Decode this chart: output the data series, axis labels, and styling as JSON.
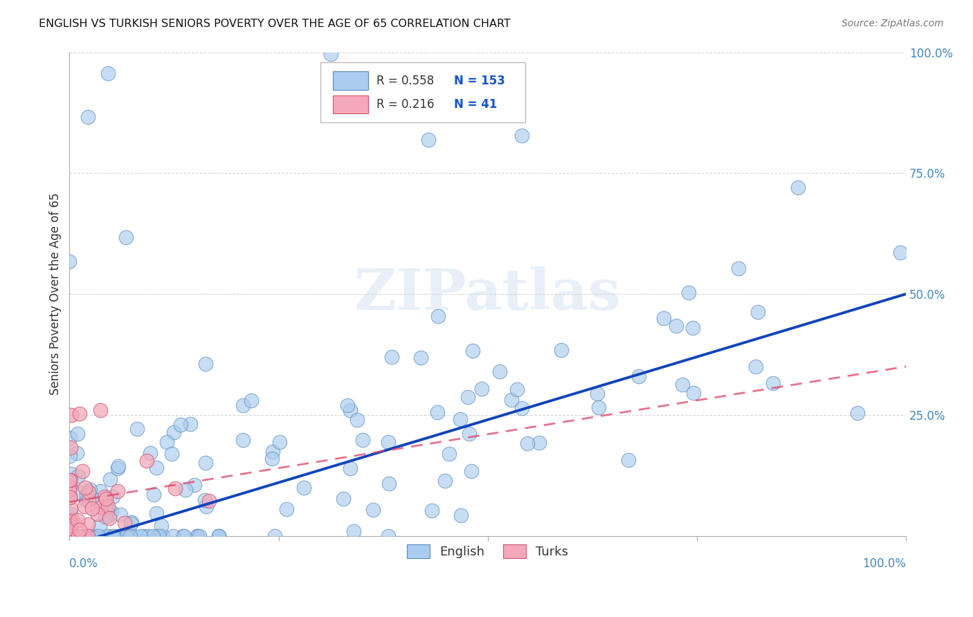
{
  "title": "ENGLISH VS TURKISH SENIORS POVERTY OVER THE AGE OF 65 CORRELATION CHART",
  "source": "Source: ZipAtlas.com",
  "ylabel": "Seniors Poverty Over the Age of 65",
  "watermark": "ZIPatlas",
  "english_R": 0.558,
  "english_N": 153,
  "turks_R": 0.216,
  "turks_N": 41,
  "english_color": "#aaccee",
  "english_edge": "#5588bb",
  "turks_color": "#f4a8b8",
  "turks_edge": "#cc5577",
  "trend_english_color": "#1144bb",
  "trend_turks_color": "#dd4466",
  "xlim": [
    0.0,
    1.0
  ],
  "ylim": [
    0.0,
    1.0
  ],
  "xtick_left": "0.0%",
  "xtick_right": "100.0%",
  "ytick_labels": [
    "25.0%",
    "50.0%",
    "75.0%",
    "100.0%"
  ],
  "ytick_vals": [
    0.25,
    0.5,
    0.75,
    1.0
  ],
  "background_color": "#ffffff",
  "grid_color": "#cccccc",
  "legend_R_color": "#333333",
  "legend_N_color": "#1155cc",
  "axis_color": "#aaaaaa",
  "tick_label_color": "#4488bb"
}
